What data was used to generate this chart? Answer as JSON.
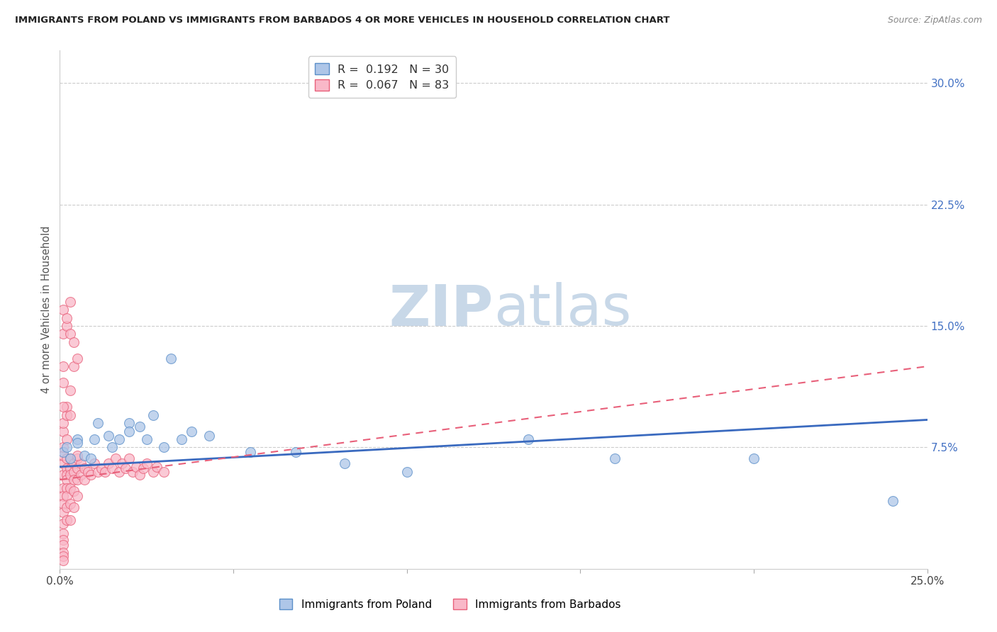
{
  "title": "IMMIGRANTS FROM POLAND VS IMMIGRANTS FROM BARBADOS 4 OR MORE VEHICLES IN HOUSEHOLD CORRELATION CHART",
  "source": "Source: ZipAtlas.com",
  "ylabel": "4 or more Vehicles in Household",
  "xlim": [
    0.0,
    0.25
  ],
  "ylim": [
    0.0,
    0.32
  ],
  "xticks": [
    0.0,
    0.05,
    0.1,
    0.15,
    0.2,
    0.25
  ],
  "xticklabels": [
    "0.0%",
    "",
    "",
    "",
    "",
    "25.0%"
  ],
  "yticks_right": [
    0.075,
    0.15,
    0.225,
    0.3
  ],
  "yticklabels_right": [
    "7.5%",
    "15.0%",
    "22.5%",
    "30.0%"
  ],
  "poland_color": "#aec6e8",
  "barbados_color": "#f9b8c8",
  "poland_edge_color": "#5b8fc9",
  "barbados_edge_color": "#e8607a",
  "poland_line_color": "#3a6abf",
  "barbados_line_color": "#e8607a",
  "poland_R": 0.192,
  "poland_N": 30,
  "barbados_R": 0.067,
  "barbados_N": 83,
  "watermark_zip": "ZIP",
  "watermark_atlas": "atlas",
  "watermark_color": "#c8d8e8",
  "legend_label_poland": "Immigrants from Poland",
  "legend_label_barbados": "Immigrants from Barbados",
  "poland_x": [
    0.001,
    0.002,
    0.003,
    0.005,
    0.007,
    0.009,
    0.011,
    0.014,
    0.017,
    0.02,
    0.023,
    0.027,
    0.032,
    0.038,
    0.043,
    0.055,
    0.068,
    0.082,
    0.1,
    0.135,
    0.005,
    0.01,
    0.015,
    0.02,
    0.025,
    0.03,
    0.035,
    0.16,
    0.2,
    0.24
  ],
  "poland_y": [
    0.072,
    0.075,
    0.068,
    0.08,
    0.07,
    0.068,
    0.09,
    0.082,
    0.08,
    0.09,
    0.088,
    0.095,
    0.13,
    0.085,
    0.082,
    0.072,
    0.072,
    0.065,
    0.06,
    0.08,
    0.078,
    0.08,
    0.075,
    0.085,
    0.08,
    0.075,
    0.08,
    0.068,
    0.068,
    0.042
  ],
  "barbados_x": [
    0.001,
    0.001,
    0.001,
    0.001,
    0.001,
    0.001,
    0.001,
    0.001,
    0.001,
    0.001,
    0.001,
    0.001,
    0.001,
    0.001,
    0.001,
    0.002,
    0.002,
    0.002,
    0.002,
    0.002,
    0.002,
    0.002,
    0.002,
    0.003,
    0.003,
    0.003,
    0.003,
    0.003,
    0.003,
    0.004,
    0.004,
    0.004,
    0.004,
    0.004,
    0.005,
    0.005,
    0.005,
    0.005,
    0.006,
    0.006,
    0.007,
    0.007,
    0.008,
    0.009,
    0.01,
    0.011,
    0.012,
    0.013,
    0.014,
    0.015,
    0.016,
    0.017,
    0.018,
    0.019,
    0.02,
    0.021,
    0.022,
    0.023,
    0.024,
    0.025,
    0.027,
    0.028,
    0.03,
    0.001,
    0.001,
    0.002,
    0.002,
    0.003,
    0.004,
    0.005,
    0.001,
    0.001,
    0.002,
    0.002,
    0.003,
    0.003,
    0.004,
    0.005,
    0.001,
    0.001,
    0.001,
    0.002,
    0.003
  ],
  "barbados_y": [
    0.065,
    0.07,
    0.075,
    0.058,
    0.05,
    0.045,
    0.04,
    0.035,
    0.028,
    0.022,
    0.018,
    0.015,
    0.01,
    0.008,
    0.005,
    0.062,
    0.068,
    0.058,
    0.055,
    0.05,
    0.045,
    0.038,
    0.03,
    0.068,
    0.062,
    0.058,
    0.05,
    0.04,
    0.03,
    0.065,
    0.06,
    0.055,
    0.048,
    0.038,
    0.068,
    0.062,
    0.055,
    0.045,
    0.065,
    0.058,
    0.062,
    0.055,
    0.06,
    0.058,
    0.065,
    0.06,
    0.062,
    0.06,
    0.065,
    0.062,
    0.068,
    0.06,
    0.065,
    0.062,
    0.068,
    0.06,
    0.063,
    0.058,
    0.062,
    0.065,
    0.06,
    0.063,
    0.06,
    0.085,
    0.09,
    0.095,
    0.1,
    0.11,
    0.125,
    0.13,
    0.145,
    0.16,
    0.15,
    0.155,
    0.165,
    0.145,
    0.14,
    0.07,
    0.115,
    0.125,
    0.1,
    0.08,
    0.095
  ],
  "poland_line_x0": 0.0,
  "poland_line_x1": 0.25,
  "poland_line_y0": 0.063,
  "poland_line_y1": 0.092,
  "barbados_line_x0": 0.0,
  "barbados_line_x1": 0.25,
  "barbados_line_y0": 0.055,
  "barbados_line_y1": 0.125
}
